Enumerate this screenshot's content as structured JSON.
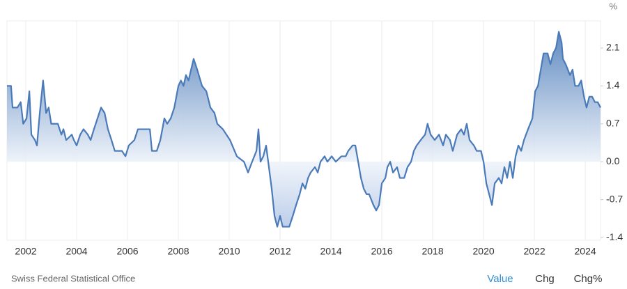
{
  "chart_data": {
    "type": "area",
    "unit": "%",
    "source": "Swiss Federal Statistical Office",
    "tabs": [
      "Value",
      "Chg",
      "Chg%"
    ],
    "color": "#4a7ab8",
    "grid": "x",
    "xlim": [
      2001.26,
      2024.6
    ],
    "xticks": [
      2002,
      2004,
      2006,
      2008,
      2010,
      2012,
      2014,
      2016,
      2018,
      2020,
      2022,
      2024
    ],
    "ylim": [
      -1.45,
      2.6
    ],
    "yticks": [
      {
        "value": -1.4,
        "label": "-1.4"
      },
      {
        "value": -0.7,
        "label": "-0.7"
      },
      {
        "value": 0,
        "label": "0.0"
      },
      0.7,
      1.4,
      2.1
    ],
    "x": [
      2001.26,
      2001.42,
      2001.48,
      2001.67,
      2001.8,
      2001.9,
      2002.03,
      2002.14,
      2002.22,
      2002.36,
      2002.44,
      2002.55,
      2002.68,
      2002.8,
      2002.9,
      2003.0,
      2003.26,
      2003.4,
      2003.48,
      2003.59,
      2003.81,
      2003.89,
      2004.0,
      2004.14,
      2004.27,
      2004.44,
      2004.55,
      2004.68,
      2004.82,
      2004.96,
      2005.1,
      2005.23,
      2005.37,
      2005.5,
      2005.78,
      2005.92,
      2006.05,
      2006.27,
      2006.41,
      2006.88,
      2006.96,
      2007.15,
      2007.29,
      2007.45,
      2007.56,
      2007.7,
      2007.84,
      2008.0,
      2008.1,
      2008.2,
      2008.3,
      2008.4,
      2008.6,
      2008.74,
      2008.93,
      2009.1,
      2009.26,
      2009.42,
      2009.53,
      2009.75,
      2010.03,
      2010.3,
      2010.58,
      2010.74,
      2010.9,
      2011.07,
      2011.15,
      2011.23,
      2011.34,
      2011.45,
      2011.56,
      2011.67,
      2011.78,
      2011.89,
      2012.0,
      2012.1,
      2012.36,
      2012.5,
      2012.63,
      2012.77,
      2012.88,
      2012.99,
      2013.1,
      2013.2,
      2013.37,
      2013.48,
      2013.59,
      2013.75,
      2013.86,
      2014.03,
      2014.19,
      2014.41,
      2014.58,
      2014.68,
      2014.85,
      2014.96,
      2015.07,
      2015.18,
      2015.29,
      2015.4,
      2015.5,
      2015.67,
      2015.78,
      2015.89,
      2016.0,
      2016.14,
      2016.22,
      2016.33,
      2016.44,
      2016.6,
      2016.71,
      2016.88,
      2017.01,
      2017.15,
      2017.26,
      2017.37,
      2017.53,
      2017.7,
      2017.8,
      2017.92,
      2018.08,
      2018.25,
      2018.41,
      2018.52,
      2018.68,
      2018.79,
      2018.96,
      2019.12,
      2019.23,
      2019.34,
      2019.45,
      2019.62,
      2019.73,
      2019.9,
      2020.0,
      2020.11,
      2020.22,
      2020.33,
      2020.44,
      2020.6,
      2020.71,
      2020.82,
      2020.93,
      2021.04,
      2021.15,
      2021.26,
      2021.37,
      2021.48,
      2021.59,
      2021.75,
      2021.92,
      2022.03,
      2022.14,
      2022.25,
      2022.36,
      2022.52,
      2022.63,
      2022.74,
      2022.85,
      2022.96,
      2023.07,
      2023.12,
      2023.23,
      2023.4,
      2023.5,
      2023.6,
      2023.73,
      2023.84,
      2023.95,
      2024.05,
      2024.16,
      2024.27,
      2024.38,
      2024.49,
      2024.6
    ],
    "values": [
      1.4,
      1.4,
      1.0,
      1.0,
      1.1,
      0.7,
      0.8,
      1.3,
      0.5,
      0.4,
      0.3,
      0.9,
      1.5,
      0.9,
      1.0,
      0.7,
      0.7,
      0.5,
      0.6,
      0.4,
      0.5,
      0.4,
      0.3,
      0.5,
      0.6,
      0.5,
      0.4,
      0.6,
      0.8,
      1.0,
      0.9,
      0.6,
      0.4,
      0.2,
      0.2,
      0.1,
      0.3,
      0.4,
      0.6,
      0.6,
      0.2,
      0.2,
      0.4,
      0.8,
      0.7,
      0.8,
      1.0,
      1.4,
      1.5,
      1.4,
      1.6,
      1.5,
      1.9,
      1.7,
      1.4,
      1.3,
      1.0,
      0.9,
      0.7,
      0.6,
      0.4,
      0.1,
      0.0,
      -0.2,
      0.0,
      0.2,
      0.6,
      0.0,
      0.1,
      0.3,
      -0.1,
      -0.5,
      -1.0,
      -1.2,
      -1.0,
      -1.2,
      -1.2,
      -1.0,
      -0.8,
      -0.6,
      -0.4,
      -0.5,
      -0.3,
      -0.2,
      -0.1,
      -0.2,
      0.0,
      0.1,
      0.0,
      0.1,
      0.0,
      0.1,
      0.1,
      0.2,
      0.3,
      0.3,
      0.0,
      -0.3,
      -0.5,
      -0.6,
      -0.6,
      -0.8,
      -0.9,
      -0.8,
      -0.4,
      -0.3,
      -0.1,
      0.0,
      -0.2,
      -0.1,
      -0.3,
      -0.3,
      -0.1,
      0.0,
      0.2,
      0.3,
      0.4,
      0.5,
      0.7,
      0.5,
      0.4,
      0.5,
      0.3,
      0.5,
      0.4,
      0.2,
      0.5,
      0.6,
      0.5,
      0.7,
      0.4,
      0.3,
      0.2,
      0.2,
      0.0,
      -0.4,
      -0.6,
      -0.8,
      -0.4,
      -0.3,
      -0.4,
      -0.1,
      -0.3,
      0.0,
      -0.3,
      0.1,
      0.3,
      0.2,
      0.4,
      0.6,
      0.8,
      1.3,
      1.4,
      1.7,
      2.0,
      2.0,
      1.8,
      2.0,
      2.1,
      2.4,
      2.2,
      1.9,
      1.8,
      1.6,
      1.7,
      1.4,
      1.4,
      1.5,
      1.2,
      1.0,
      1.2,
      1.2,
      1.1,
      1.1,
      1.0
    ]
  }
}
